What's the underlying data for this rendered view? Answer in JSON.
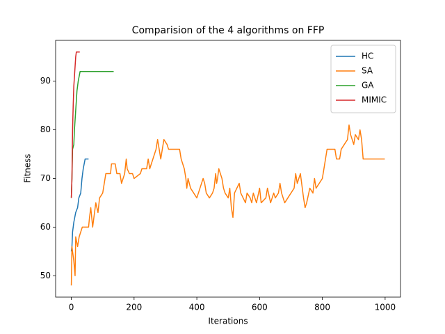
{
  "chart_data": {
    "type": "line",
    "title": "Comparision of the 4 algorithms on FFP",
    "x_label": "Iterations",
    "y_label": "Fitness",
    "xlim": [
      -50,
      1049
    ],
    "ylim": [
      45.6,
      98.4
    ],
    "xticks": [
      0,
      200,
      400,
      600,
      800,
      1000
    ],
    "yticks": [
      50,
      60,
      70,
      80,
      90
    ],
    "grid": false,
    "legend": "upper-right",
    "series": [
      {
        "name": "HC",
        "color": "#1f77b4",
        "x": [
          0,
          2,
          4,
          8,
          14,
          20,
          24,
          30,
          34,
          38,
          44,
          55
        ],
        "values": [
          55,
          56,
          59,
          61,
          63,
          64,
          66,
          67,
          70,
          72,
          74,
          74
        ]
      },
      {
        "name": "SA",
        "color": "#ff7f0e",
        "x": [
          0,
          2,
          4,
          8,
          12,
          14,
          20,
          25,
          35,
          55,
          58,
          62,
          68,
          72,
          78,
          85,
          90,
          100,
          105,
          110,
          125,
          128,
          140,
          145,
          155,
          160,
          165,
          170,
          175,
          178,
          185,
          195,
          200,
          220,
          225,
          240,
          245,
          250,
          260,
          270,
          275,
          280,
          285,
          290,
          295,
          305,
          310,
          345,
          350,
          360,
          365,
          368,
          372,
          380,
          390,
          400,
          410,
          420,
          425,
          430,
          440,
          450,
          455,
          460,
          463,
          466,
          470,
          480,
          485,
          490,
          500,
          505,
          510,
          515,
          520,
          535,
          540,
          555,
          560,
          570,
          575,
          580,
          590,
          600,
          605,
          620,
          625,
          635,
          645,
          650,
          660,
          665,
          670,
          680,
          690,
          700,
          710,
          715,
          720,
          730,
          740,
          745,
          750,
          760,
          770,
          775,
          780,
          790,
          800,
          805,
          810,
          815,
          840,
          845,
          855,
          860,
          870,
          880,
          885,
          890,
          900,
          905,
          915,
          920,
          925,
          930,
          999
        ],
        "values": [
          48,
          56,
          55,
          53,
          50,
          58,
          56,
          58,
          60,
          60,
          62,
          64,
          60,
          62,
          65,
          63,
          66,
          67,
          69,
          71,
          71,
          73,
          73,
          71,
          71,
          69,
          70,
          71,
          74,
          72,
          71,
          71,
          70,
          71,
          72,
          72,
          74,
          72,
          74,
          76,
          78,
          76,
          74,
          76,
          78,
          77,
          76,
          76,
          74,
          72,
          70,
          68,
          70,
          68,
          67,
          66,
          68,
          70,
          69,
          67,
          66,
          67,
          68,
          71,
          69,
          70,
          72,
          70,
          68,
          67,
          66,
          68,
          64,
          62,
          67,
          69,
          67,
          65,
          67,
          66,
          65,
          67,
          65,
          68,
          65,
          66,
          68,
          65,
          67,
          66,
          67,
          69,
          67,
          65,
          66,
          67,
          68,
          71,
          69,
          71,
          66,
          64,
          65,
          68,
          67,
          70,
          68,
          69,
          70,
          72,
          74,
          76,
          76,
          74,
          74,
          76,
          77,
          78,
          81,
          79,
          77,
          79,
          78,
          80,
          78,
          74,
          74
        ]
      },
      {
        "name": "GA",
        "color": "#2ca02c",
        "x": [
          0,
          2,
          4,
          8,
          10,
          14,
          18,
          22,
          28,
          135
        ],
        "values": [
          66,
          70,
          76,
          77,
          80,
          84,
          88,
          90,
          92,
          92
        ]
      },
      {
        "name": "MIMIC",
        "color": "#d62728",
        "x": [
          0,
          2,
          4,
          6,
          8,
          12,
          14,
          16,
          27
        ],
        "values": [
          66,
          70,
          80,
          85,
          89,
          93,
          95,
          96,
          96
        ]
      }
    ]
  }
}
